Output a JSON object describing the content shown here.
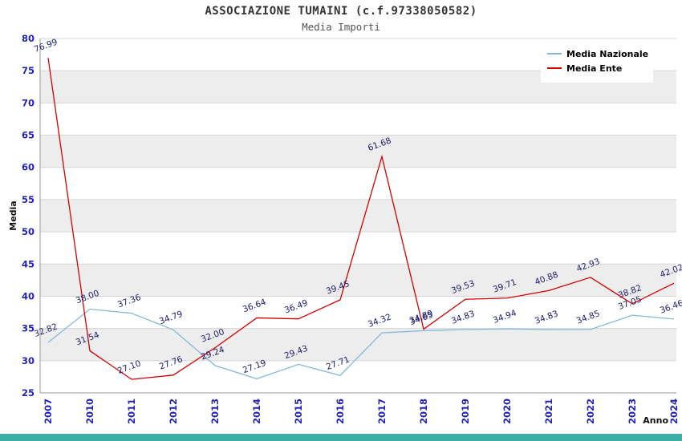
{
  "page": {
    "title": "ASSOCIAZIONE TUMAINI (c.f.97338050582)",
    "subtitle": "Media Importi"
  },
  "chart_data": {
    "type": "line",
    "title": "ASSOCIAZIONE TUMAINI (c.f.97338050582)",
    "subtitle": "Media Importi",
    "xlabel": "Anno",
    "ylabel": "Media",
    "ylim": [
      25,
      80
    ],
    "ytick_step": 5,
    "grid": true,
    "legend_position": "top-right",
    "categories": [
      "2007",
      "2010",
      "2011",
      "2012",
      "2013",
      "2014",
      "2015",
      "2016",
      "2017",
      "2018",
      "2019",
      "2020",
      "2021",
      "2022",
      "2023",
      "2024"
    ],
    "series": [
      {
        "name": "Media Nazionale",
        "color": "#86b8d8",
        "values": [
          32.82,
          38.0,
          37.36,
          34.79,
          29.24,
          27.19,
          29.43,
          27.71,
          34.32,
          34.65,
          34.83,
          34.94,
          34.83,
          34.85,
          37.05,
          36.46
        ]
      },
      {
        "name": "Media Ente",
        "color": "#d40000",
        "values": [
          76.99,
          31.54,
          27.1,
          27.76,
          32.0,
          36.64,
          36.49,
          39.45,
          61.68,
          34.89,
          39.53,
          39.71,
          40.88,
          42.93,
          38.82,
          42.02
        ]
      }
    ],
    "colors": {
      "band_light": "#ffffff",
      "band_dark": "#ededed",
      "gridline": "#d6d6d6",
      "axis_line": "#999999",
      "tick_text": "#2424b4",
      "point_label": "#1c1c6e",
      "axis_title": "#111111",
      "legend_text": "#000000",
      "legend_bg": "#ffffff"
    }
  },
  "footer": {
    "bar_color": "#3cafa4"
  }
}
